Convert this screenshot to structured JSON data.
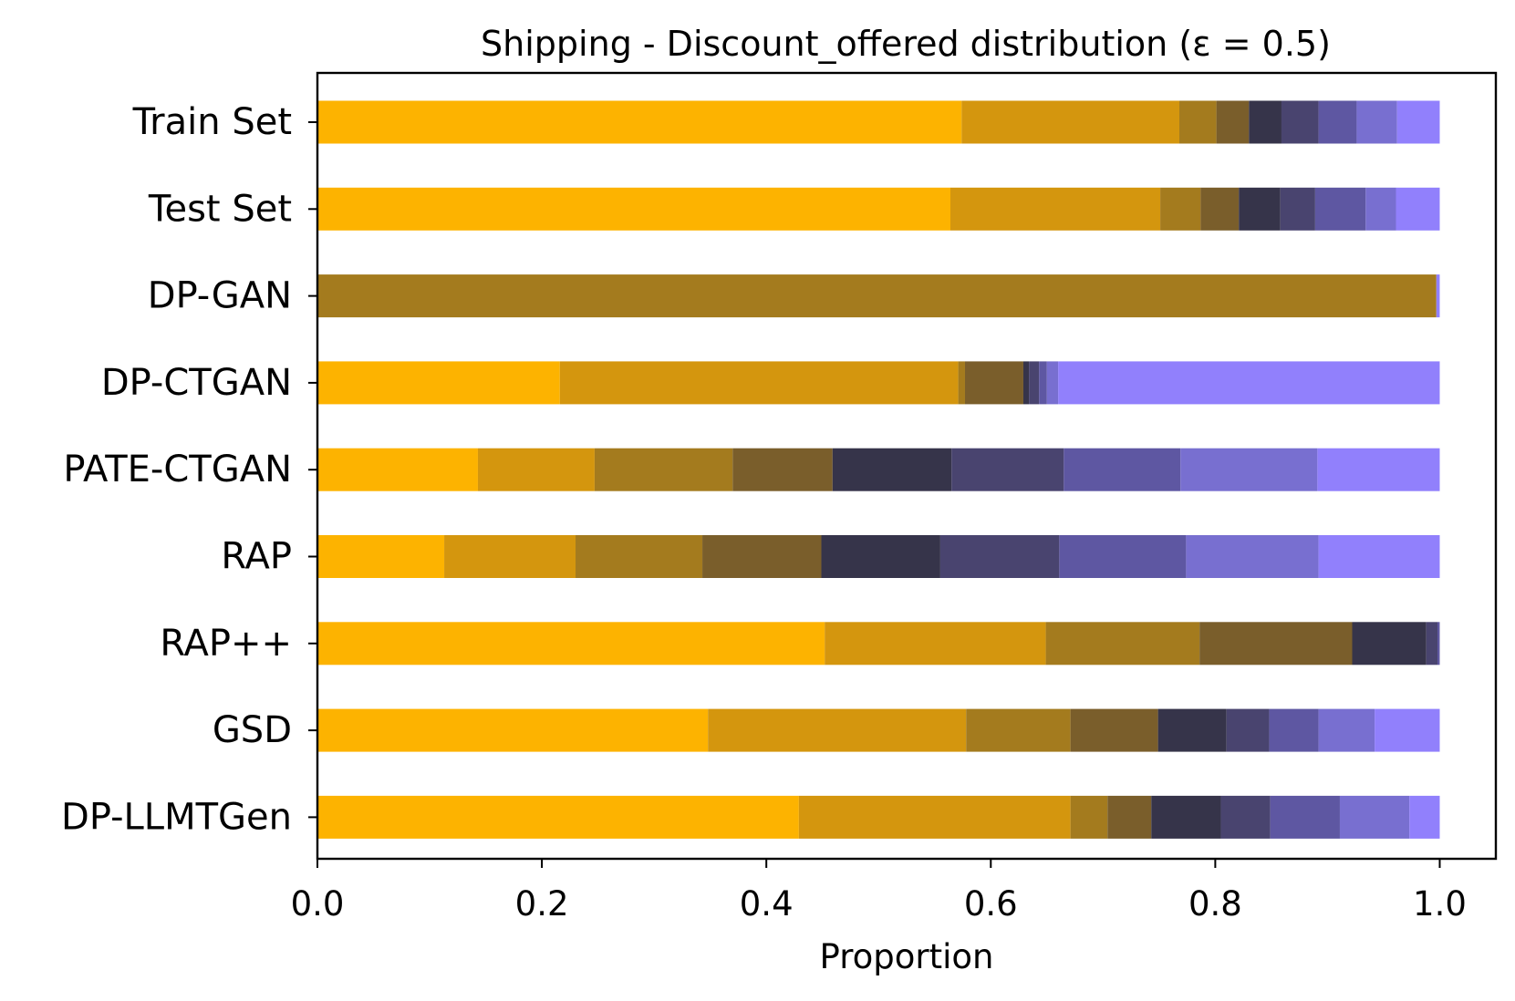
{
  "chart_data": {
    "type": "bar",
    "orientation": "horizontal",
    "stacked": true,
    "title": "Shipping - Discount_offered distribution (ε = 0.5)",
    "xlabel": "Proportion",
    "ylabel": "",
    "xlim": [
      0.0,
      1.05
    ],
    "xticks": [
      "0.0",
      "0.2",
      "0.4",
      "0.6",
      "0.8",
      "1.0"
    ],
    "xtick_values": [
      0.0,
      0.2,
      0.4,
      0.6,
      0.8,
      1.0
    ],
    "grid": false,
    "legend": "none",
    "categories": [
      "Train Set",
      "Test Set",
      "DP-GAN",
      "DP-CTGAN",
      "PATE-CTGAN",
      "RAP",
      "RAP++",
      "GSD",
      "DP-LLMTGen"
    ],
    "segment_colors": [
      "#FDB300",
      "#D4960E",
      "#A47B1E",
      "#7A5E2B",
      "#36344A",
      "#49446F",
      "#5E57A2",
      "#786FD0",
      "#9180FC"
    ],
    "rows": [
      [
        0.574,
        0.194,
        0.033,
        0.029,
        0.029,
        0.033,
        0.034,
        0.036,
        0.038
      ],
      [
        0.564,
        0.187,
        0.036,
        0.034,
        0.037,
        0.031,
        0.045,
        0.027,
        0.039
      ],
      [
        0.0,
        0.0,
        0.997,
        0.0,
        0.0,
        0.0,
        0.0,
        0.0,
        0.003
      ],
      [
        0.216,
        0.355,
        0.006,
        0.052,
        0.005,
        0.009,
        0.007,
        0.01,
        0.34
      ],
      [
        0.143,
        0.104,
        0.123,
        0.089,
        0.106,
        0.1,
        0.104,
        0.122,
        0.109
      ],
      [
        0.113,
        0.117,
        0.113,
        0.106,
        0.106,
        0.106,
        0.113,
        0.118,
        0.108
      ],
      [
        0.452,
        0.197,
        0.137,
        0.136,
        0.066,
        0.01,
        0.002,
        0.0,
        0.0
      ],
      [
        0.348,
        0.23,
        0.093,
        0.078,
        0.061,
        0.038,
        0.044,
        0.05,
        0.058
      ],
      [
        0.429,
        0.242,
        0.033,
        0.039,
        0.062,
        0.044,
        0.062,
        0.062,
        0.027
      ]
    ]
  }
}
